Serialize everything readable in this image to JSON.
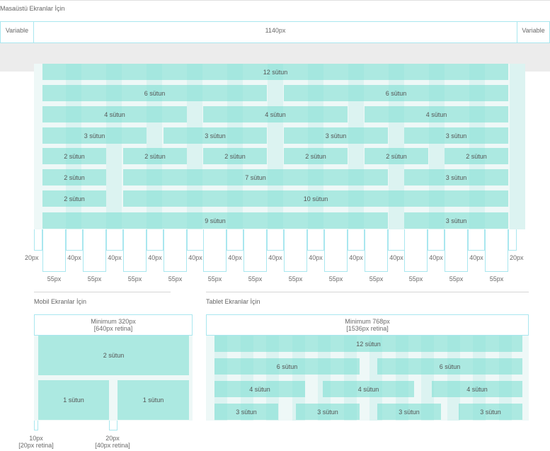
{
  "desktop": {
    "title": "Masaüstü Ekranlar İçin",
    "container": {
      "left_label": "Variable",
      "center_label": "1140px",
      "right_label": "Variable"
    },
    "rows": [
      [
        "12 sütun"
      ],
      [
        "6 sütun",
        "6 sütun"
      ],
      [
        "4 sütun",
        "4 sütun",
        "4 sütun"
      ],
      [
        "3 sütun",
        "3 sütun",
        "3 sütun",
        "3 sütun"
      ],
      [
        "2 sütun",
        "2 sütun",
        "2 sütun",
        "2 sütun",
        "2 sütun",
        "2 sütun"
      ],
      [
        "2 sütun",
        "7 sütun",
        "3 sütun"
      ],
      [
        "2 sütun",
        "10 sütun"
      ],
      [
        "9 sütun",
        "3 sütun"
      ]
    ],
    "measure": {
      "edge": "20px",
      "gutter": "40px",
      "column": "55px"
    }
  },
  "mobile": {
    "title": "Mobil Ekranlar İçin",
    "min_line1": "Minimum 320px",
    "min_line2": "[640px retina]",
    "rows": [
      [
        "2 sütun"
      ],
      [
        "1 sütun",
        "1 sütun"
      ]
    ],
    "edge_line1": "10px",
    "edge_line2": "[20px retina]",
    "gutter_line1": "20px",
    "gutter_line2": "[40px retina]"
  },
  "tablet": {
    "title": "Tablet Ekranlar İçin",
    "min_line1": "Minimum 768px",
    "min_line2": "[1536px retina]",
    "rows": [
      [
        "12 sütun"
      ],
      [
        "6 sütun",
        "6 sütun"
      ],
      [
        "4 sütun",
        "4 sütun",
        "4 sütun"
      ],
      [
        "3 sütun",
        "3 sütun",
        "3 sütun",
        "3 sütun"
      ]
    ]
  }
}
